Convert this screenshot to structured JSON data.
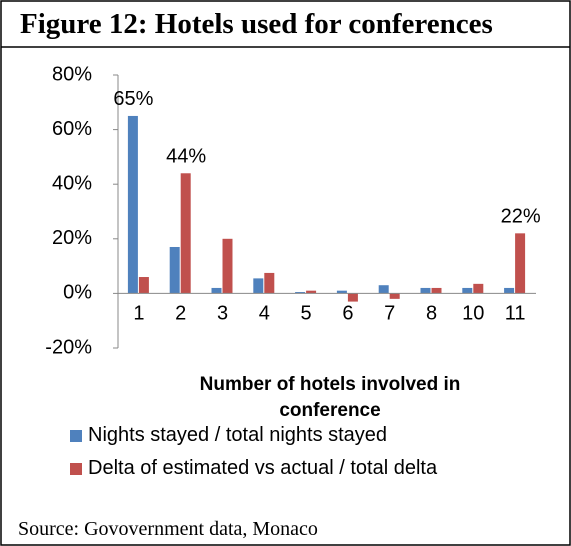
{
  "chart_data": {
    "type": "bar",
    "title": "Figure 12:  Hotels used for conferences",
    "x_label": "Number of hotels involved in conference",
    "source": "Source: Govovernment data, Monaco",
    "categories": [
      "1",
      "2",
      "3",
      "4",
      "5",
      "6",
      "7",
      "8",
      "10",
      "11"
    ],
    "series": [
      {
        "name": "Nights stayed / total nights stayed",
        "color": "#4f81bd",
        "values": [
          65,
          17,
          2,
          5.5,
          0.5,
          1,
          3,
          2,
          2,
          2
        ],
        "value_labels": [
          "65%",
          null,
          null,
          null,
          null,
          null,
          null,
          null,
          null,
          null
        ]
      },
      {
        "name": "Delta of estimated vs actual / total delta",
        "color": "#c0504d",
        "values": [
          6,
          44,
          20,
          7.5,
          1,
          -3,
          -2,
          2,
          3.5,
          22
        ],
        "value_labels": [
          null,
          "44%",
          null,
          null,
          null,
          null,
          null,
          null,
          null,
          "22%"
        ]
      }
    ],
    "ylim": [
      -20,
      80
    ],
    "yticks": [
      {
        "value": -20,
        "label": "-20%"
      },
      {
        "value": 0,
        "label": "0%"
      },
      {
        "value": 20,
        "label": "20%"
      },
      {
        "value": 40,
        "label": "40%"
      },
      {
        "value": 60,
        "label": "60%"
      },
      {
        "value": 80,
        "label": "80%"
      }
    ],
    "legend": "bottom"
  }
}
